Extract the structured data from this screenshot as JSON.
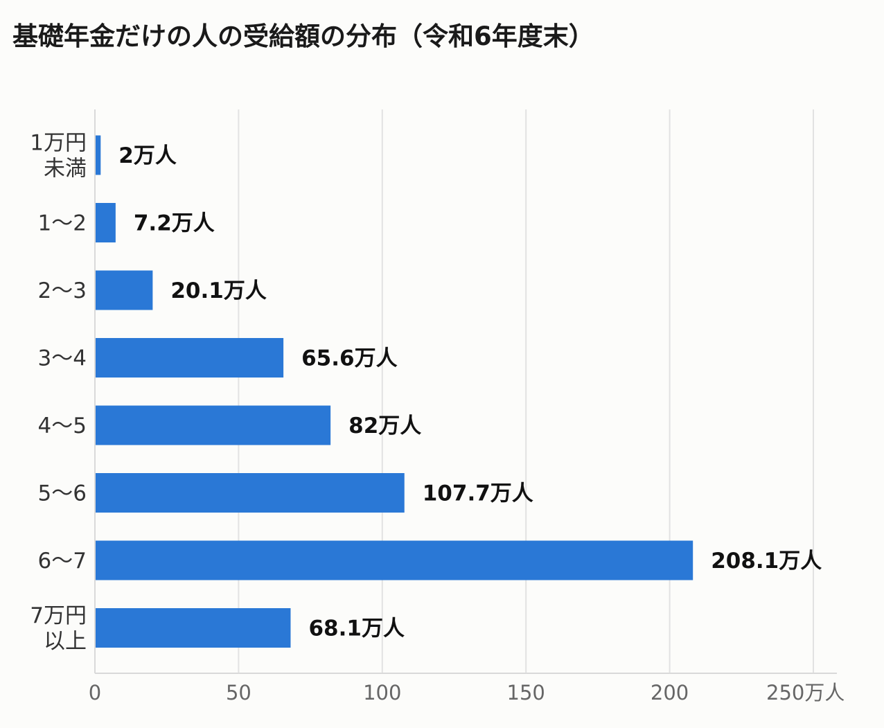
{
  "chart_data": {
    "type": "bar",
    "orientation": "horizontal",
    "title": "基礎年金だけの人の受給額の分布（令和6年度末）",
    "categories": [
      [
        "1万円",
        "未満"
      ],
      [
        "1〜2"
      ],
      [
        "2〜3"
      ],
      [
        "3〜4"
      ],
      [
        "4〜5"
      ],
      [
        "5〜6"
      ],
      [
        "6〜7"
      ],
      [
        "7万円",
        "以上"
      ]
    ],
    "values": [
      2,
      7.2,
      20.1,
      65.6,
      82,
      107.7,
      208.1,
      68.1
    ],
    "value_labels": [
      "2万人",
      "7.2万人",
      "20.1万人",
      "65.6万人",
      "82万人",
      "107.7万人",
      "208.1万人",
      "68.1万人"
    ],
    "xlim": [
      0,
      250
    ],
    "xticks": [
      "0",
      "50",
      "100",
      "150",
      "200",
      "250万人"
    ],
    "xtick_values": [
      0,
      50,
      100,
      150,
      200,
      250
    ],
    "grid": true,
    "bar_color": "#2a78d6",
    "grid_color": "#e2e2e2"
  }
}
